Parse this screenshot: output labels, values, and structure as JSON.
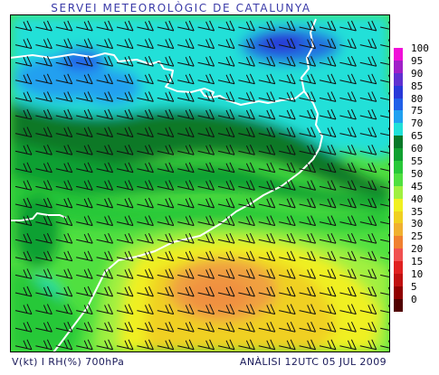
{
  "header": {
    "title": "SERVEI METEOROLÒGIC DE CATALUNYA"
  },
  "footer": {
    "variables": "V(kt) I RH(%) 700hPa",
    "analysis": "ANÀLISI 12UTC 05 JUL 2009"
  },
  "legend": {
    "items": [
      {
        "label": "100",
        "color": "#f010d8"
      },
      {
        "label": "95",
        "color": "#a020c8"
      },
      {
        "label": "90",
        "color": "#6030d0"
      },
      {
        "label": "85",
        "color": "#2838d8"
      },
      {
        "label": "80",
        "color": "#2060e8"
      },
      {
        "label": "75",
        "color": "#20a0f0"
      },
      {
        "label": "70",
        "color": "#20e0d8"
      },
      {
        "label": "65",
        "color": "#087828"
      },
      {
        "label": "60",
        "color": "#10a030"
      },
      {
        "label": "55",
        "color": "#28c838"
      },
      {
        "label": "50",
        "color": "#50e040"
      },
      {
        "label": "45",
        "color": "#a0f040"
      },
      {
        "label": "40",
        "color": "#f0f020"
      },
      {
        "label": "35",
        "color": "#f0d020"
      },
      {
        "label": "30",
        "color": "#f0b030"
      },
      {
        "label": "25",
        "color": "#f08030"
      },
      {
        "label": "20",
        "color": "#f05050"
      },
      {
        "label": "15",
        "color": "#e02020"
      },
      {
        "label": "10",
        "color": "#c01010"
      },
      {
        "label": "5",
        "color": "#900000"
      },
      {
        "label": "0",
        "color": "#500000"
      }
    ]
  }
}
